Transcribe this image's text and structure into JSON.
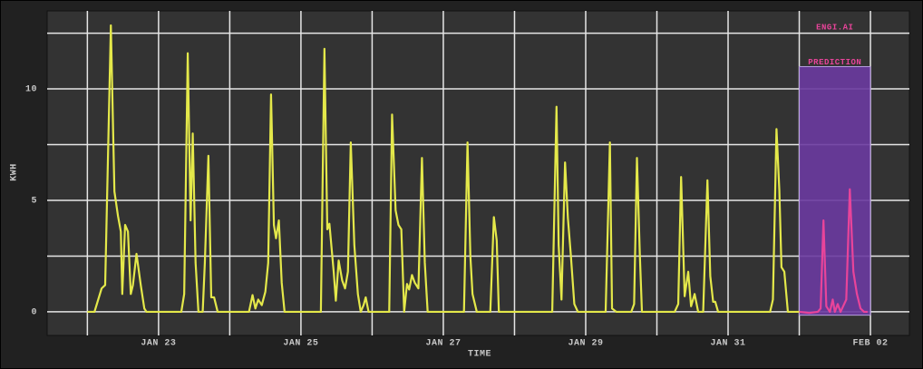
{
  "chart_data": {
    "type": "line",
    "xlabel": "TIME",
    "ylabel": "KWH",
    "xlim": [
      21.435,
      33.547
    ],
    "ylim": [
      -1.06,
      13.5
    ],
    "xticks": [
      {
        "value": 23,
        "label": "JAN 23"
      },
      {
        "value": 25,
        "label": "JAN 25"
      },
      {
        "value": 27,
        "label": "JAN 27"
      },
      {
        "value": 29,
        "label": "JAN 29"
      },
      {
        "value": 31,
        "label": "JAN 31"
      },
      {
        "value": 33,
        "label": "FEB 02"
      }
    ],
    "x_minor_ticks": [
      22,
      24,
      26,
      28,
      30,
      32
    ],
    "yticks": [
      0,
      5,
      10
    ],
    "y_minor_ticks": [
      2.5,
      7.5,
      12.5
    ],
    "grid": true,
    "shade": {
      "xlim": [
        32,
        33
      ],
      "ylim": [
        -0.15,
        11
      ],
      "color": "#6a3aa0"
    },
    "annotations": [
      "ENGI.AI",
      "PREDICTION"
    ],
    "annotation_color": "#e8449a",
    "series": [
      {
        "color": "#e4e84a",
        "x": [
          22.0,
          22.1,
          22.2,
          22.25,
          22.33,
          22.38,
          22.43,
          22.47,
          22.49,
          22.53,
          22.57,
          22.61,
          22.64,
          22.69,
          22.75,
          22.8,
          22.83,
          23.32,
          23.36,
          23.41,
          23.45,
          23.48,
          23.52,
          23.56,
          23.62,
          23.65,
          23.7,
          23.74,
          23.78,
          23.83,
          24.27,
          24.32,
          24.36,
          24.4,
          24.45,
          24.5,
          24.54,
          24.58,
          24.62,
          24.65,
          24.69,
          24.73,
          24.77,
          25.28,
          25.33,
          25.37,
          25.4,
          25.46,
          25.49,
          25.53,
          25.58,
          25.62,
          25.66,
          25.7,
          25.75,
          25.8,
          25.84,
          25.88,
          25.91,
          25.95,
          26.24,
          26.28,
          26.33,
          26.37,
          26.41,
          26.45,
          26.49,
          26.52,
          26.56,
          26.6,
          26.65,
          26.7,
          26.74,
          26.78,
          27.29,
          27.34,
          27.38,
          27.41,
          27.47,
          27.66,
          27.71,
          27.75,
          27.78,
          28.53,
          28.59,
          28.62,
          28.66,
          28.71,
          28.75,
          28.79,
          28.84,
          28.89,
          29.28,
          29.34,
          29.37,
          29.43,
          29.64,
          29.68,
          29.72,
          29.76,
          29.79,
          30.25,
          30.3,
          30.34,
          30.39,
          30.44,
          30.48,
          30.53,
          30.58,
          30.65,
          30.71,
          30.75,
          30.79,
          30.82,
          30.86,
          31.59,
          31.63,
          31.68,
          31.72,
          31.75,
          31.79,
          31.84,
          32.0
        ],
        "values": [
          0,
          0,
          1.05,
          1.2,
          12.85,
          5.4,
          4.3,
          3.6,
          0.8,
          3.9,
          3.6,
          0.8,
          1.2,
          2.6,
          1.2,
          0.15,
          0,
          0,
          0.8,
          11.6,
          4.1,
          8.0,
          2.2,
          0,
          0,
          2.2,
          7.0,
          0.65,
          0.65,
          0,
          0,
          0.75,
          0.15,
          0.55,
          0.3,
          0.9,
          2.2,
          9.75,
          3.9,
          3.3,
          4.1,
          1.3,
          0,
          0,
          11.8,
          3.7,
          3.95,
          1.8,
          0.5,
          2.3,
          1.4,
          1.05,
          1.8,
          7.6,
          3.0,
          0.8,
          0,
          0.3,
          0.65,
          0,
          0,
          8.85,
          4.55,
          3.9,
          3.7,
          0,
          1.25,
          1.0,
          1.65,
          1.3,
          1.05,
          6.9,
          2.2,
          0,
          0,
          7.6,
          2.5,
          0.8,
          0,
          0,
          4.25,
          3.2,
          0,
          0,
          9.2,
          3.0,
          0.55,
          6.7,
          4.2,
          2.6,
          0.35,
          0,
          0,
          7.6,
          0.15,
          0,
          0,
          0.35,
          6.9,
          2.6,
          0,
          0,
          0.35,
          6.05,
          0.7,
          1.8,
          0.25,
          0.8,
          0,
          0,
          5.9,
          1.6,
          0.45,
          0.45,
          0,
          0,
          0.55,
          8.2,
          5.45,
          2.0,
          1.8,
          0,
          0
        ]
      },
      {
        "color": "#e8449a",
        "x": [
          32.0,
          32.14,
          32.26,
          32.3,
          32.34,
          32.38,
          32.43,
          32.47,
          32.5,
          32.54,
          32.58,
          32.66,
          32.71,
          32.76,
          32.81,
          32.86,
          32.91,
          32.96
        ],
        "values": [
          0,
          -0.05,
          0,
          0.15,
          4.1,
          0.25,
          0,
          0.55,
          0,
          0.35,
          0,
          0.55,
          5.5,
          1.8,
          0.8,
          0.15,
          0,
          0
        ]
      }
    ]
  }
}
